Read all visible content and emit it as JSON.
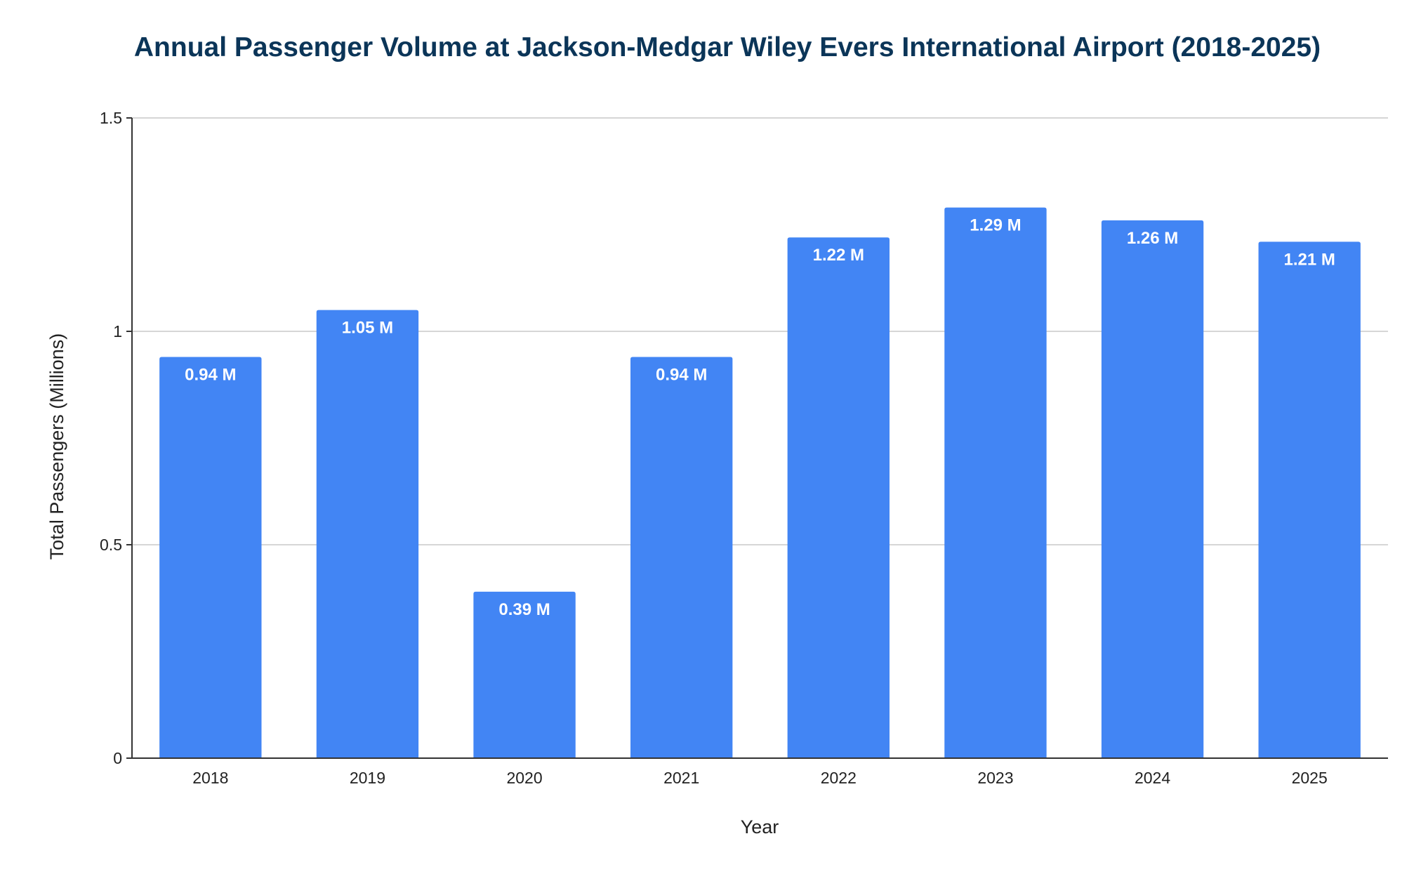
{
  "colors": {
    "bar": "#4285f4",
    "title": "#0b3558",
    "data_label": "#ffffff"
  },
  "chart_data": {
    "type": "bar",
    "title": "Annual Passenger Volume at Jackson-Medgar Wiley Evers International Airport (2018-2025)",
    "xlabel": "Year",
    "ylabel": "Total Passengers (Millions)",
    "categories": [
      "2018",
      "2019",
      "2020",
      "2021",
      "2022",
      "2023",
      "2024",
      "2025"
    ],
    "values": [
      0.94,
      1.05,
      0.39,
      0.94,
      1.22,
      1.29,
      1.26,
      1.21
    ],
    "data_labels": [
      "0.94 M",
      "1.05 M",
      "0.39 M",
      "0.94 M",
      "1.22 M",
      "1.29 M",
      "1.26 M",
      "1.21 M"
    ],
    "ylim": [
      0,
      1.5
    ],
    "yticks": [
      0,
      0.5,
      1,
      1.5
    ],
    "ytick_labels": [
      "0",
      "0.5",
      "1",
      "1.5"
    ],
    "grid": true,
    "legend": "none"
  }
}
